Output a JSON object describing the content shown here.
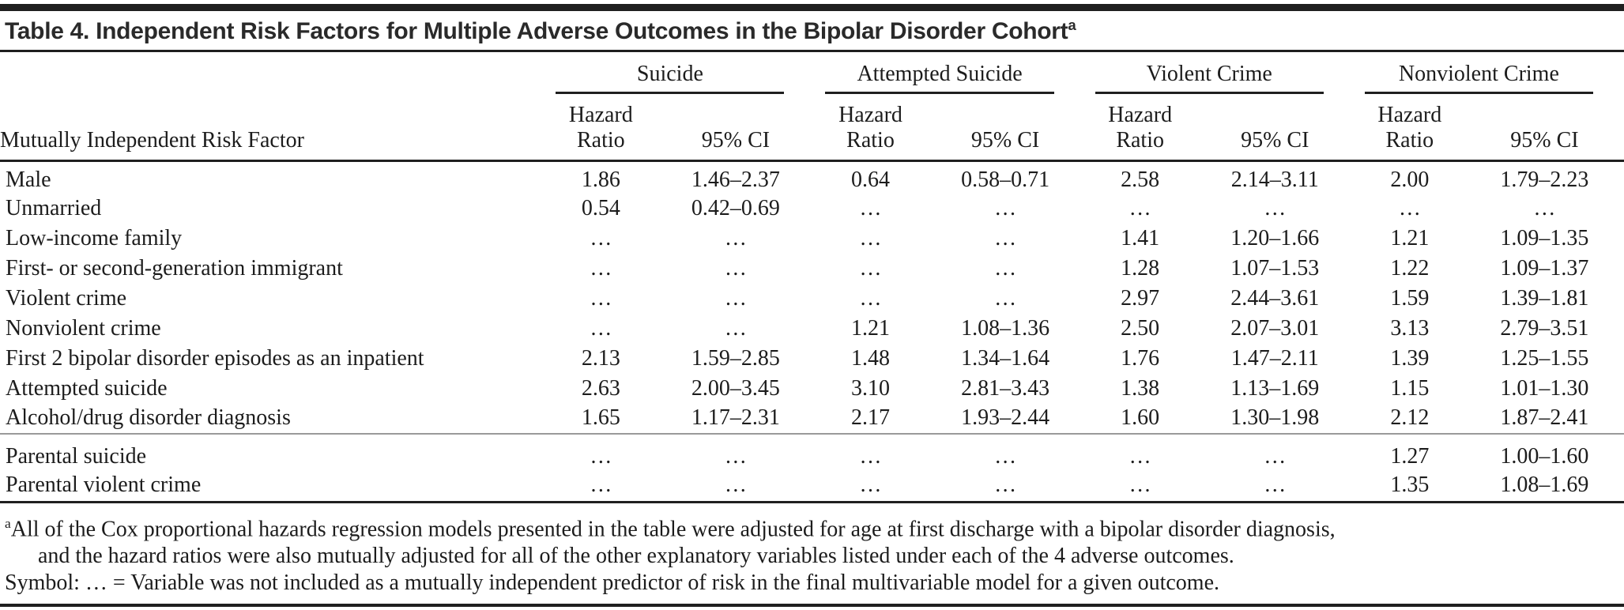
{
  "title": {
    "text": "Table 4. Independent Risk Factors for Multiple Adverse Outcomes in the Bipolar Disorder Cohort",
    "superscript": "a"
  },
  "table": {
    "row_header": "Mutually Independent Risk Factor",
    "groups": [
      {
        "label": "Suicide"
      },
      {
        "label": "Attempted Suicide"
      },
      {
        "label": "Violent Crime"
      },
      {
        "label": "Nonviolent Crime"
      }
    ],
    "subheaders": {
      "hazard_line1": "Hazard",
      "hazard_line2": "Ratio",
      "ci": "95% CI"
    },
    "rows": [
      {
        "label": "Male",
        "values": [
          "1.86",
          "1.46–2.37",
          "0.64",
          "0.58–0.71",
          "2.58",
          "2.14–3.11",
          "2.00",
          "1.79–2.23"
        ]
      },
      {
        "label": "Unmarried",
        "values": [
          "0.54",
          "0.42–0.69",
          "…",
          "…",
          "…",
          "…",
          "…",
          "…"
        ]
      },
      {
        "label": "Low-income family",
        "values": [
          "…",
          "…",
          "…",
          "…",
          "1.41",
          "1.20–1.66",
          "1.21",
          "1.09–1.35"
        ]
      },
      {
        "label": "First- or second-generation immigrant",
        "values": [
          "…",
          "…",
          "…",
          "…",
          "1.28",
          "1.07–1.53",
          "1.22",
          "1.09–1.37"
        ]
      },
      {
        "label": "Violent crime",
        "values": [
          "…",
          "…",
          "…",
          "…",
          "2.97",
          "2.44–3.61",
          "1.59",
          "1.39–1.81"
        ]
      },
      {
        "label": "Nonviolent crime",
        "values": [
          "…",
          "…",
          "1.21",
          "1.08–1.36",
          "2.50",
          "2.07–3.01",
          "3.13",
          "2.79–3.51"
        ]
      },
      {
        "label": "First 2 bipolar disorder episodes as an inpatient",
        "values": [
          "2.13",
          "1.59–2.85",
          "1.48",
          "1.34–1.64",
          "1.76",
          "1.47–2.11",
          "1.39",
          "1.25–1.55"
        ]
      },
      {
        "label": "Attempted suicide",
        "values": [
          "2.63",
          "2.00–3.45",
          "3.10",
          "2.81–3.43",
          "1.38",
          "1.13–1.69",
          "1.15",
          "1.01–1.30"
        ]
      },
      {
        "label": "Alcohol/drug disorder diagnosis",
        "values": [
          "1.65",
          "1.17–2.31",
          "2.17",
          "1.93–2.44",
          "1.60",
          "1.30–1.98",
          "2.12",
          "1.87–2.41"
        ]
      }
    ],
    "rows_parental": [
      {
        "label": "Parental suicide",
        "values": [
          "…",
          "…",
          "…",
          "…",
          "…",
          "…",
          "1.27",
          "1.00–1.60"
        ]
      },
      {
        "label": "Parental violent crime",
        "values": [
          "…",
          "…",
          "…",
          "…",
          "…",
          "…",
          "1.35",
          "1.08–1.69"
        ]
      }
    ]
  },
  "footnotes": {
    "a_marker": "a",
    "a_line1": "All of the Cox proportional hazards regression models presented in the table were adjusted for age at first discharge with a bipolar disorder diagnosis,",
    "a_line2": "and the hazard ratios were also mutually adjusted for all of the other explanatory variables listed under each of the 4 adverse outcomes.",
    "symbol_line": "Symbol: … = Variable was not included as a mutually independent predictor of risk in the final multivariable model for a given outcome."
  },
  "colors": {
    "text": "#1c1c1c",
    "title": "#2a2a2a",
    "rule_dark": "#1f1f1f",
    "rule_light": "#9a9a9a",
    "background": "#ffffff"
  }
}
